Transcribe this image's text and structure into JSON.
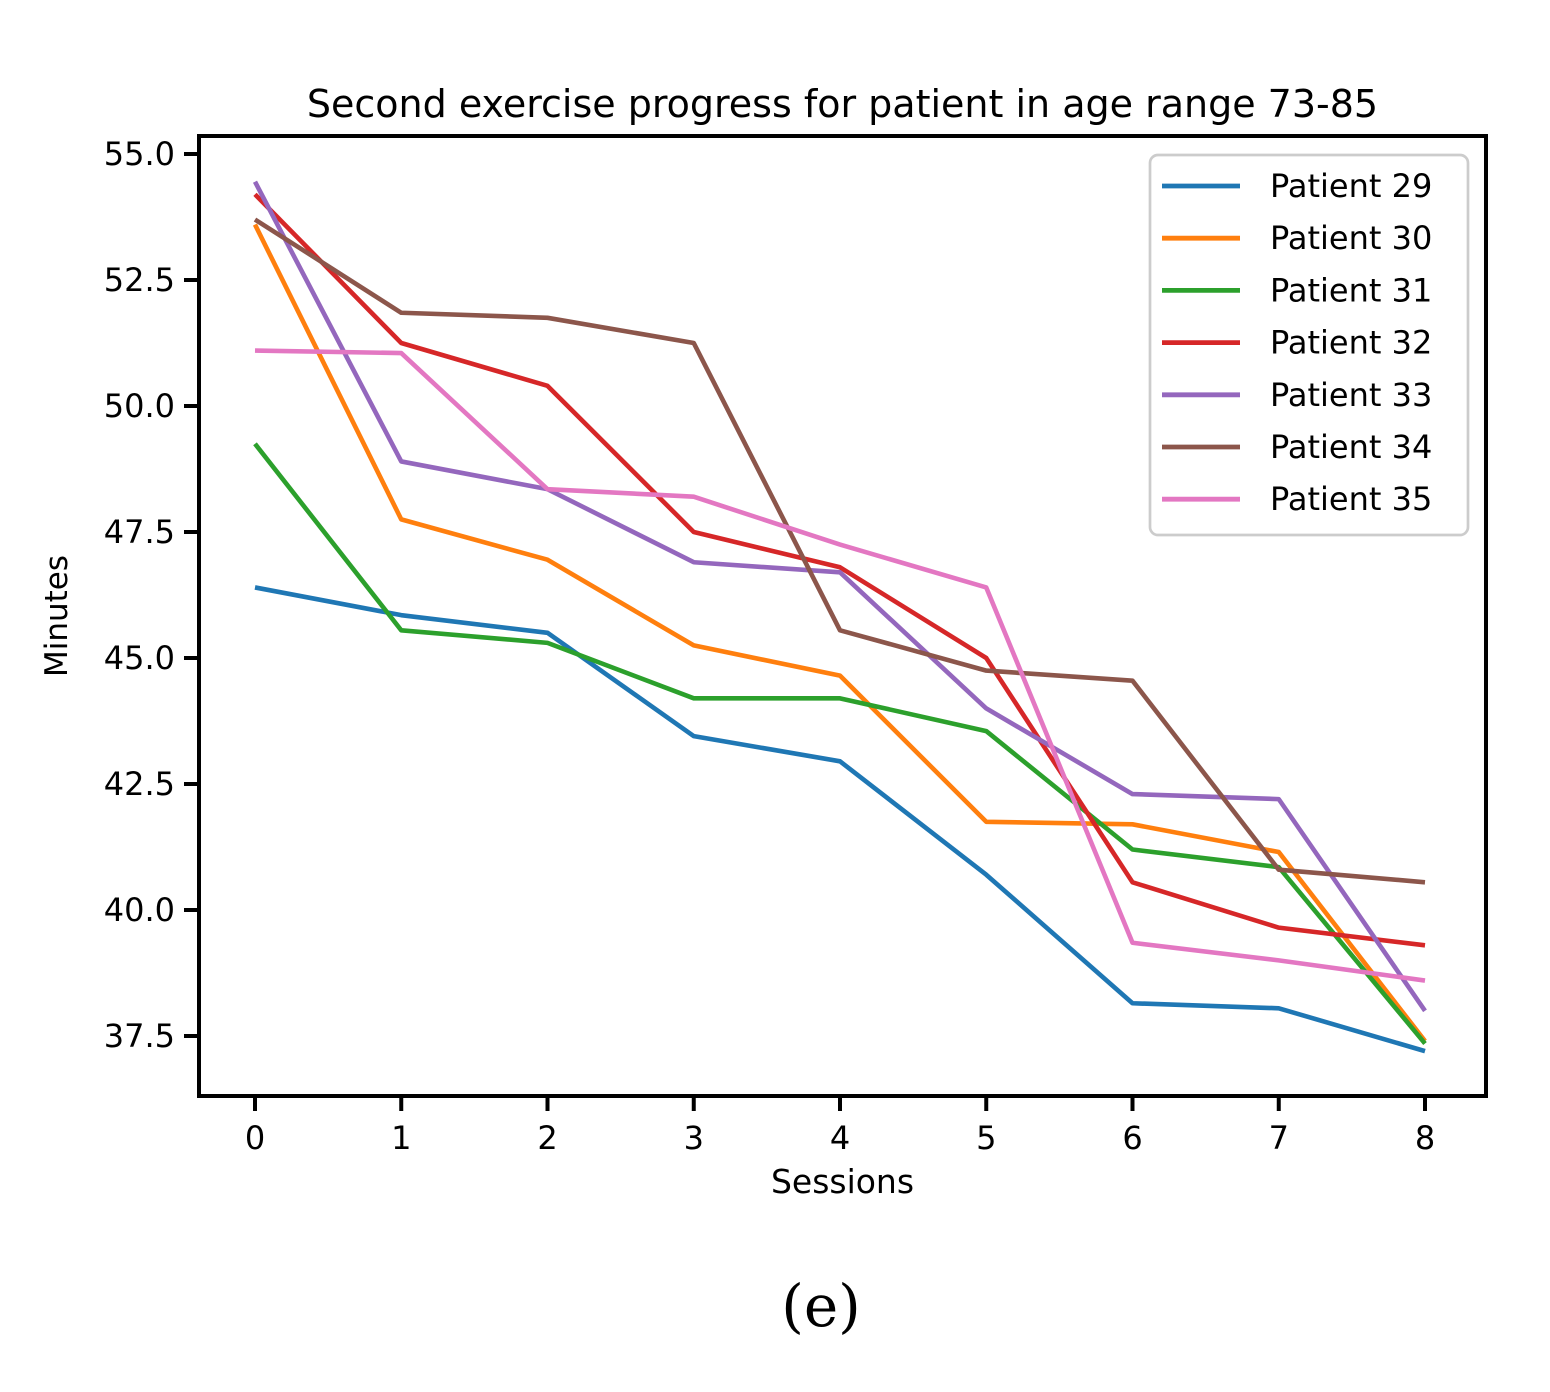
{
  "figure": {
    "title": "Second exercise progress for patient in age range 73-85",
    "xlabel": "Sessions",
    "ylabel": "Minutes",
    "caption": "(e)"
  },
  "chart_data": {
    "type": "line",
    "title": "Second exercise progress for patient in age range 73-85",
    "xlabel": "Sessions",
    "ylabel": "Minutes",
    "x": [
      0,
      1,
      2,
      3,
      4,
      5,
      6,
      7,
      8
    ],
    "xtick_labels": [
      "0",
      "1",
      "2",
      "3",
      "4",
      "5",
      "6",
      "7",
      "8"
    ],
    "ytick_values": [
      55.0,
      52.5,
      50.0,
      47.5,
      45.0,
      42.5,
      40.0,
      37.5
    ],
    "ytick_labels": [
      "55.0",
      "52.5",
      "50.0",
      "47.5",
      "45.0",
      "42.5",
      "40.0",
      "37.5"
    ],
    "xlim": [
      -0.42,
      8.42
    ],
    "ylim": [
      36.3,
      55.36
    ],
    "grid": false,
    "legend_position": "upper right",
    "axis_color": "#000000",
    "legend_border_color": "#cccccc",
    "series": [
      {
        "name": "Patient 29",
        "color": "#1f77b4",
        "values": [
          46.4,
          45.85,
          45.5,
          43.45,
          42.95,
          40.7,
          38.15,
          38.05,
          37.2
        ]
      },
      {
        "name": "Patient 30",
        "color": "#ff7f0e",
        "values": [
          53.6,
          47.75,
          46.95,
          45.25,
          44.65,
          41.75,
          41.7,
          41.15,
          37.4
        ]
      },
      {
        "name": "Patient 31",
        "color": "#2ca02c",
        "values": [
          49.25,
          45.55,
          45.3,
          44.2,
          44.2,
          43.55,
          41.2,
          40.85,
          37.35
        ]
      },
      {
        "name": "Patient 32",
        "color": "#d62728",
        "values": [
          54.2,
          51.25,
          50.4,
          47.5,
          46.8,
          45.0,
          40.55,
          39.65,
          39.3
        ]
      },
      {
        "name": "Patient 33",
        "color": "#9467bd",
        "values": [
          54.45,
          48.9,
          48.35,
          46.9,
          46.7,
          44.0,
          42.3,
          42.2,
          38.0
        ]
      },
      {
        "name": "Patient 34",
        "color": "#8c564b",
        "values": [
          53.7,
          51.85,
          51.75,
          51.25,
          45.55,
          44.75,
          44.55,
          40.8,
          40.55
        ]
      },
      {
        "name": "Patient 35",
        "color": "#e377c2",
        "values": [
          51.1,
          51.05,
          48.35,
          48.2,
          47.25,
          46.4,
          39.35,
          39.0,
          38.6
        ]
      }
    ]
  }
}
